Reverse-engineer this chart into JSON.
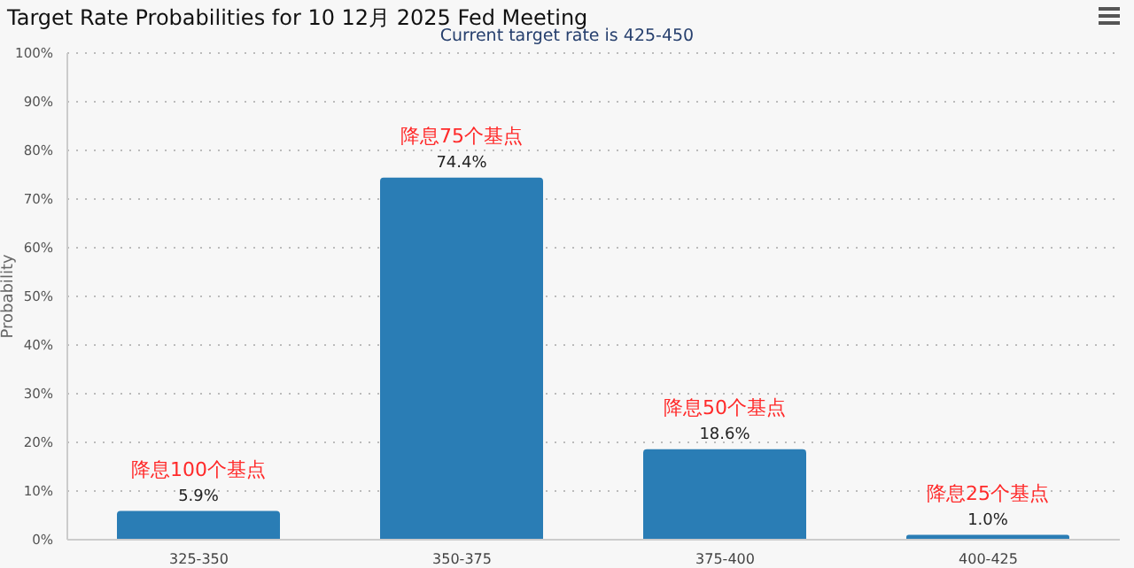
{
  "chart_data": {
    "type": "bar",
    "title": "Target Rate Probabilities for 10 12月 2025 Fed Meeting",
    "subtitle": "Current target rate is 425-450",
    "ylabel": "Probability",
    "categories": [
      "325-350",
      "350-375",
      "375-400",
      "400-425"
    ],
    "values": [
      5.9,
      74.4,
      18.6,
      1.0
    ],
    "color": "#2a7db5",
    "value_labels": [
      "5.9%",
      "74.4%",
      "18.6%",
      "1.0%"
    ],
    "annotations": [
      {
        "text": "降息100个基点",
        "x": "325-350",
        "y": 5.9
      },
      {
        "text": "降息75个基点",
        "x": "350-375",
        "y": 74.4
      },
      {
        "text": "降息50个基点",
        "x": "375-400",
        "y": 18.6
      },
      {
        "text": "降息25个基点",
        "x": "400-425",
        "y": 1.0
      }
    ],
    "ylim": [
      0,
      100
    ],
    "yticks": [
      {
        "value": 0,
        "label": "0%"
      },
      {
        "value": 10,
        "label": "10%"
      },
      {
        "value": 20,
        "label": "20%"
      },
      {
        "value": 30,
        "label": "30%"
      },
      {
        "value": 40,
        "label": "40%"
      },
      {
        "value": 50,
        "label": "50%"
      },
      {
        "value": 60,
        "label": "60%"
      },
      {
        "value": 70,
        "label": "70%"
      },
      {
        "value": 80,
        "label": "80%"
      },
      {
        "value": 90,
        "label": "90%"
      },
      {
        "value": 100,
        "label": "100%"
      }
    ],
    "grid": "y"
  }
}
